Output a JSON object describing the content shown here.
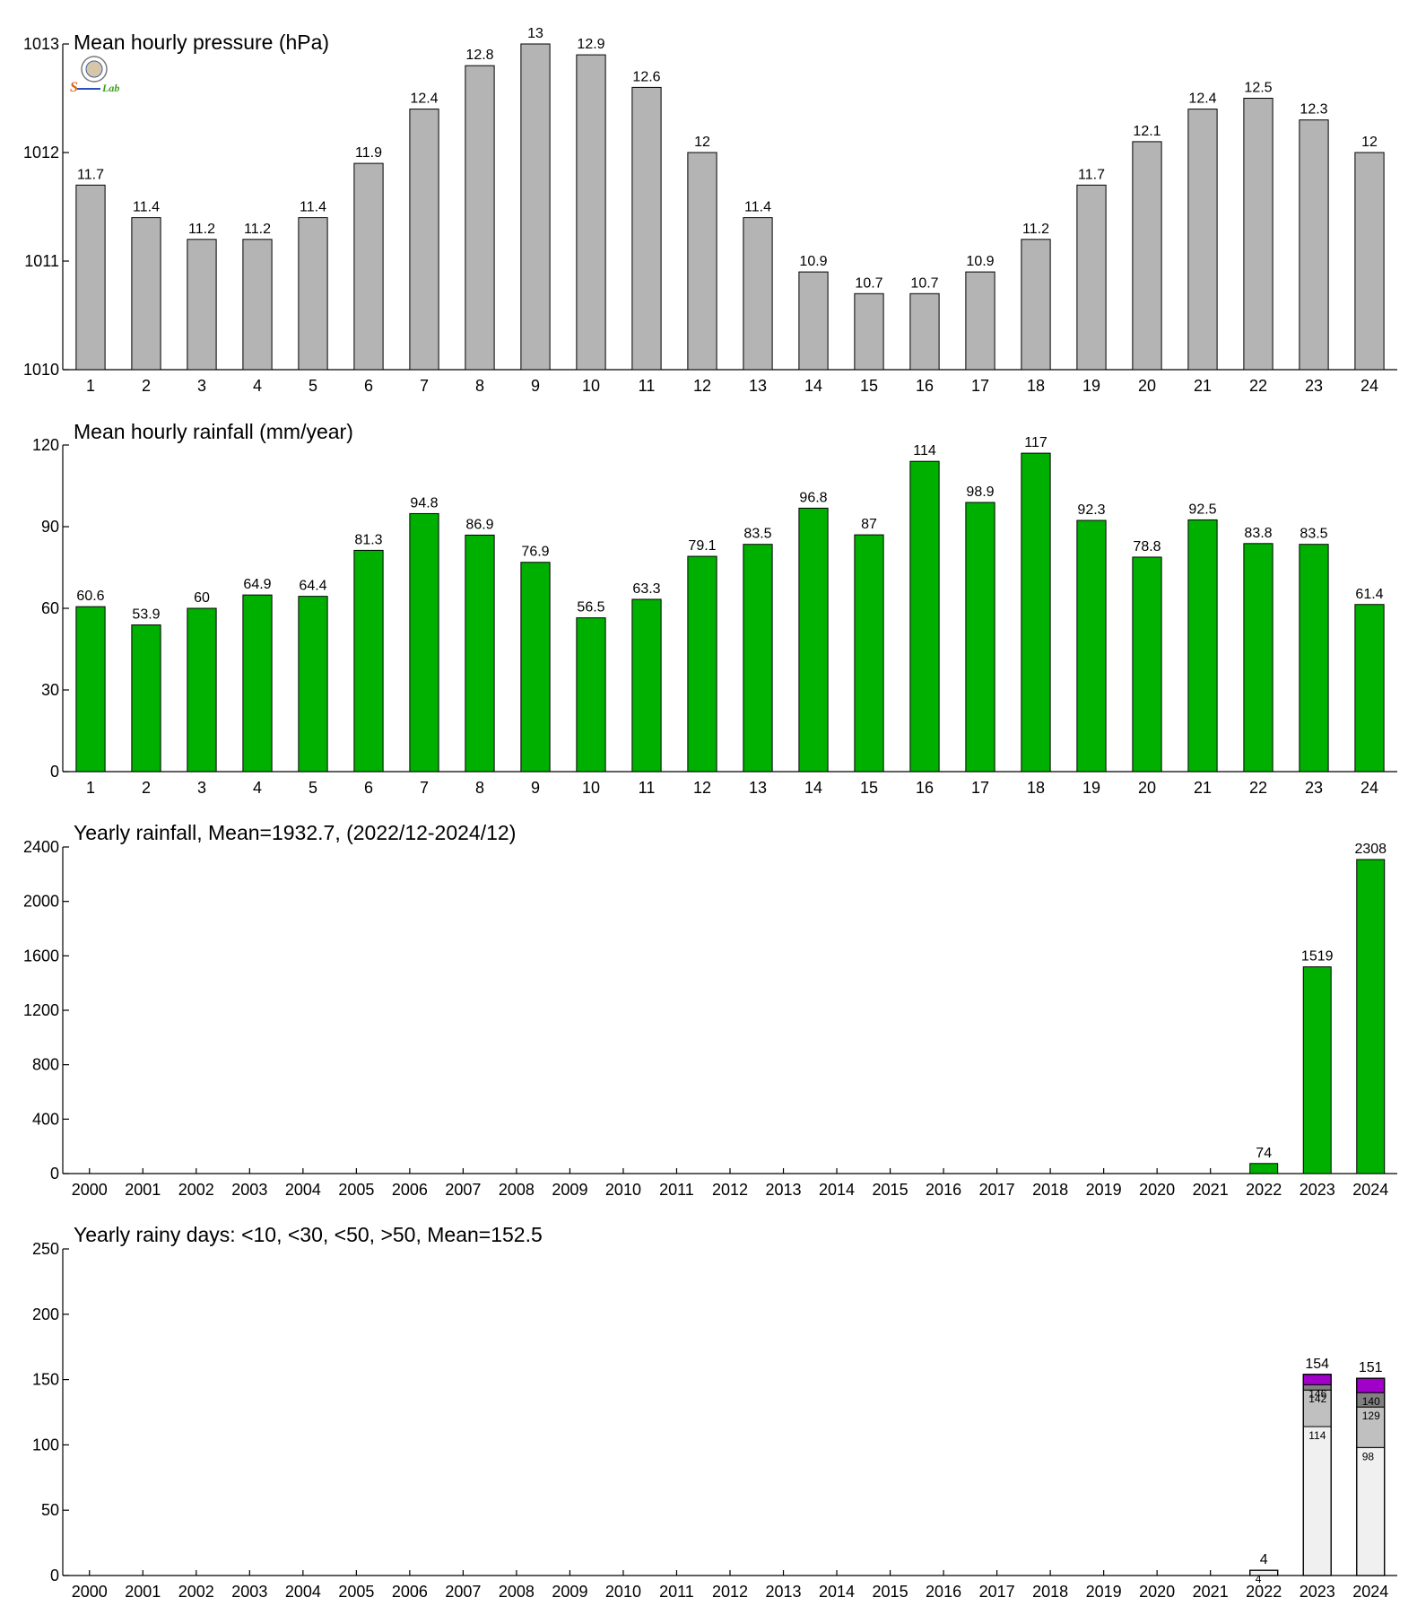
{
  "logo": {
    "text_s": "S",
    "text_lab": "Lab"
  },
  "colors": {
    "gray_bar": "#b4b4b4",
    "green_bar": "#00b000",
    "lt10": "#f0f0f0",
    "lt30": "#c0c0c0",
    "lt50": "#808080",
    "gt50": "#a000c8"
  },
  "chart_data": [
    {
      "id": "pressure",
      "type": "bar",
      "title": "Mean hourly pressure (hPa)",
      "categories": [
        "1",
        "2",
        "3",
        "4",
        "5",
        "6",
        "7",
        "8",
        "9",
        "10",
        "11",
        "12",
        "13",
        "14",
        "15",
        "16",
        "17",
        "18",
        "19",
        "20",
        "21",
        "22",
        "23",
        "24"
      ],
      "values": [
        1011.7,
        1011.4,
        1011.2,
        1011.2,
        1011.4,
        1011.9,
        1012.4,
        1012.8,
        1013.0,
        1012.9,
        1012.6,
        1012.0,
        1011.4,
        1010.9,
        1010.7,
        1010.7,
        1010.9,
        1011.2,
        1011.7,
        1012.1,
        1012.4,
        1012.5,
        1012.3,
        1012.0
      ],
      "data_labels": [
        "11.7",
        "11.4",
        "11.2",
        "11.2",
        "11.4",
        "11.9",
        "12.4",
        "12.8",
        "13",
        "12.9",
        "12.6",
        "12",
        "11.4",
        "10.9",
        "10.7",
        "10.7",
        "10.9",
        "11.2",
        "11.7",
        "12.1",
        "12.4",
        "12.5",
        "12.3",
        "12"
      ],
      "ylim": [
        1010,
        1013
      ],
      "yticks": [
        "1010",
        "1011",
        "1012",
        "1013"
      ],
      "color_key": "gray_bar"
    },
    {
      "id": "rainfall-hourly",
      "type": "bar",
      "title": "Mean hourly rainfall (mm/year)",
      "categories": [
        "1",
        "2",
        "3",
        "4",
        "5",
        "6",
        "7",
        "8",
        "9",
        "10",
        "11",
        "12",
        "13",
        "14",
        "15",
        "16",
        "17",
        "18",
        "19",
        "20",
        "21",
        "22",
        "23",
        "24"
      ],
      "values": [
        60.6,
        53.9,
        60,
        64.9,
        64.4,
        81.3,
        94.8,
        86.9,
        76.9,
        56.5,
        63.3,
        79.1,
        83.5,
        96.8,
        87,
        114,
        98.9,
        117,
        92.3,
        78.8,
        92.5,
        83.8,
        83.5,
        61.4
      ],
      "data_labels": [
        "60.6",
        "53.9",
        "60",
        "64.9",
        "64.4",
        "81.3",
        "94.8",
        "86.9",
        "76.9",
        "56.5",
        "63.3",
        "79.1",
        "83.5",
        "96.8",
        "87",
        "114",
        "98.9",
        "117",
        "92.3",
        "78.8",
        "92.5",
        "83.8",
        "83.5",
        "61.4"
      ],
      "ylim": [
        0,
        120
      ],
      "yticks": [
        "0",
        "30",
        "60",
        "90",
        "120"
      ],
      "color_key": "green_bar"
    },
    {
      "id": "rainfall-yearly",
      "type": "bar",
      "title": "Yearly rainfall, Mean=1932.7, (2022/12-2024/12)",
      "categories": [
        "2000",
        "2001",
        "2002",
        "2003",
        "2004",
        "2005",
        "2006",
        "2007",
        "2008",
        "2009",
        "2010",
        "2011",
        "2012",
        "2013",
        "2014",
        "2015",
        "2016",
        "2017",
        "2018",
        "2019",
        "2020",
        "2021",
        "2022",
        "2023",
        "2024"
      ],
      "values": [
        null,
        null,
        null,
        null,
        null,
        null,
        null,
        null,
        null,
        null,
        null,
        null,
        null,
        null,
        null,
        null,
        null,
        null,
        null,
        null,
        null,
        null,
        74,
        1519,
        2308
      ],
      "data_labels": [
        "",
        "",
        "",
        "",
        "",
        "",
        "",
        "",
        "",
        "",
        "",
        "",
        "",
        "",
        "",
        "",
        "",
        "",
        "",
        "",
        "",
        "",
        "74",
        "1519",
        "2308"
      ],
      "ylim": [
        0,
        2400
      ],
      "yticks": [
        "0",
        "400",
        "800",
        "1200",
        "1600",
        "2000",
        "2400"
      ],
      "color_key": "green_bar"
    },
    {
      "id": "rainy-days",
      "type": "bar",
      "stacked": true,
      "title": "Yearly rainy days: <10, <30, <50, >50, Mean=152.5",
      "categories": [
        "2000",
        "2001",
        "2002",
        "2003",
        "2004",
        "2005",
        "2006",
        "2007",
        "2008",
        "2009",
        "2010",
        "2011",
        "2012",
        "2013",
        "2014",
        "2015",
        "2016",
        "2017",
        "2018",
        "2019",
        "2020",
        "2021",
        "2022",
        "2023",
        "2024"
      ],
      "stacks": [
        {
          "category": "2022",
          "cumulative": [
            4,
            4,
            4,
            4
          ],
          "segment_labels": [
            "4",
            "",
            "",
            ""
          ],
          "total_label": "4"
        },
        {
          "category": "2023",
          "cumulative": [
            114,
            142,
            146,
            154
          ],
          "segment_labels": [
            "114",
            "142",
            "146",
            ""
          ],
          "total_label": "154"
        },
        {
          "category": "2024",
          "cumulative": [
            98,
            129,
            140,
            151
          ],
          "segment_labels": [
            "98",
            "129",
            "140",
            ""
          ],
          "total_label": "151"
        }
      ],
      "segment_color_keys": [
        "lt10",
        "lt30",
        "lt50",
        "gt50"
      ],
      "ylim": [
        0,
        250
      ],
      "yticks": [
        "0",
        "50",
        "100",
        "150",
        "200",
        "250"
      ]
    }
  ]
}
